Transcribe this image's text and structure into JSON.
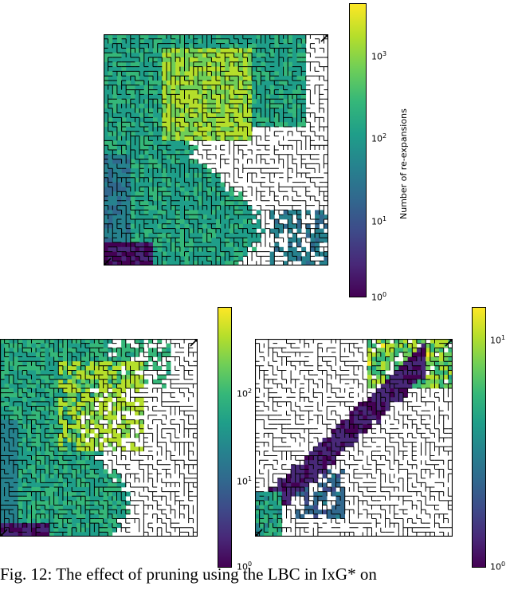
{
  "chart_data": [
    {
      "type": "heatmap",
      "title": "",
      "colormap": "viridis",
      "colorbar": {
        "label": "Number of re-expansions",
        "scale": "log",
        "range": [
          1,
          4000
        ],
        "ticks": [
          {
            "base": "10",
            "exp": "0"
          },
          {
            "base": "10",
            "exp": "1"
          },
          {
            "base": "10",
            "exp": "2"
          },
          {
            "base": "10",
            "exp": "3"
          }
        ]
      },
      "markers": [
        "start (bottom-left)",
        "goal (top-right)"
      ],
      "regions": [
        {
          "level": 1,
          "desc": "bottom-left corner"
        },
        {
          "level": 20,
          "desc": "left column"
        },
        {
          "level": 150,
          "desc": "left and center"
        },
        {
          "level": 1500,
          "desc": "upper center"
        },
        {
          "level": 0,
          "desc": "unexplored right side"
        }
      ]
    },
    {
      "type": "heatmap",
      "title": "",
      "colormap": "viridis",
      "colorbar": {
        "label": "",
        "scale": "log",
        "range": [
          1,
          700
        ],
        "ticks": [
          {
            "base": "10",
            "exp": "0"
          },
          {
            "base": "10",
            "exp": "1"
          },
          {
            "base": "10",
            "exp": "2"
          }
        ]
      },
      "markers": [
        "start (bottom-left)",
        "goal (top-right)"
      ]
    },
    {
      "type": "heatmap",
      "title": "",
      "colormap": "viridis",
      "colorbar": {
        "label": "",
        "scale": "log",
        "range": [
          1,
          14
        ],
        "ticks": [
          {
            "base": "10",
            "exp": "0"
          },
          {
            "base": "10",
            "exp": "1"
          }
        ]
      },
      "markers": [
        "start (bottom-left)",
        "goal (top-right)"
      ]
    }
  ],
  "caption": "Fig. 12: The effect of pruning using the LBC in IxG* on"
}
